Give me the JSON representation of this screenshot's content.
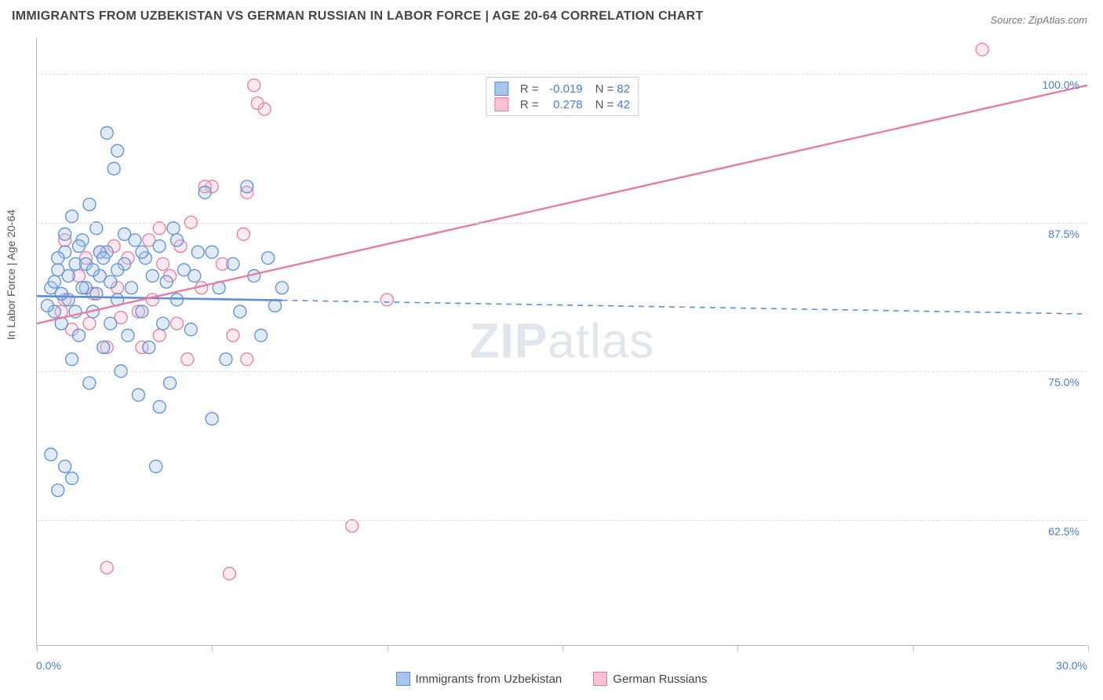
{
  "title": "IMMIGRANTS FROM UZBEKISTAN VS GERMAN RUSSIAN IN LABOR FORCE | AGE 20-64 CORRELATION CHART",
  "source": "Source: ZipAtlas.com",
  "watermark_bold": "ZIP",
  "watermark_rest": "atlas",
  "chart": {
    "type": "scatter",
    "y_label": "In Labor Force | Age 20-64",
    "x_min": 0.0,
    "x_max": 30.0,
    "y_min": 52.0,
    "y_max": 103.0,
    "x_ticks": [
      0,
      5,
      10,
      15,
      20,
      25,
      30
    ],
    "x_tick_labels": {
      "0": "0.0%",
      "30": "30.0%"
    },
    "y_ticks": [
      62.5,
      75.0,
      87.5,
      100.0
    ],
    "y_tick_labels": [
      "62.5%",
      "75.0%",
      "87.5%",
      "100.0%"
    ],
    "grid_color": "#dddddd",
    "axis_color": "#bbbbbb",
    "background_color": "#ffffff",
    "marker_radius": 8,
    "marker_stroke_width": 1.3,
    "marker_fill_opacity": 0.35,
    "series": [
      {
        "key": "uzbekistan",
        "label": "Immigrants from Uzbekistan",
        "color_stroke": "#5b8fd6",
        "color_fill": "#a8c5eb",
        "r_value": "-0.019",
        "n_value": "82",
        "trend": {
          "x1": 0.0,
          "y1": 81.3,
          "x2": 30.0,
          "y2": 79.8,
          "solid_until_x": 7.0,
          "solid_width": 2.6,
          "dash_width": 1.6,
          "dash_pattern": "7,6"
        },
        "points": [
          [
            0.4,
            82.0
          ],
          [
            0.5,
            80.0
          ],
          [
            0.6,
            83.5
          ],
          [
            0.7,
            79.0
          ],
          [
            0.8,
            85.0
          ],
          [
            0.9,
            81.0
          ],
          [
            1.0,
            88.0
          ],
          [
            1.0,
            76.0
          ],
          [
            1.1,
            84.0
          ],
          [
            1.2,
            78.0
          ],
          [
            1.3,
            86.0
          ],
          [
            1.4,
            82.0
          ],
          [
            1.5,
            74.0
          ],
          [
            1.6,
            80.0
          ],
          [
            1.7,
            87.0
          ],
          [
            1.8,
            83.0
          ],
          [
            1.9,
            77.0
          ],
          [
            2.0,
            85.0
          ],
          [
            2.1,
            79.0
          ],
          [
            2.2,
            92.0
          ],
          [
            2.3,
            81.0
          ],
          [
            2.4,
            75.0
          ],
          [
            2.5,
            84.0
          ],
          [
            2.6,
            78.0
          ],
          [
            2.7,
            82.0
          ],
          [
            2.8,
            86.0
          ],
          [
            2.9,
            73.0
          ],
          [
            3.0,
            80.0
          ],
          [
            3.1,
            84.5
          ],
          [
            3.2,
            77.0
          ],
          [
            3.3,
            83.0
          ],
          [
            3.4,
            67.0
          ],
          [
            3.5,
            85.5
          ],
          [
            3.6,
            79.0
          ],
          [
            3.7,
            82.5
          ],
          [
            3.8,
            74.0
          ],
          [
            3.9,
            87.0
          ],
          [
            4.0,
            81.0
          ],
          [
            4.2,
            83.5
          ],
          [
            4.4,
            78.5
          ],
          [
            4.6,
            85.0
          ],
          [
            4.8,
            90.0
          ],
          [
            5.0,
            71.0
          ],
          [
            5.2,
            82.0
          ],
          [
            5.4,
            76.0
          ],
          [
            5.6,
            84.0
          ],
          [
            5.8,
            80.0
          ],
          [
            6.0,
            90.5
          ],
          [
            1.0,
            66.0
          ],
          [
            0.8,
            67.0
          ],
          [
            0.6,
            65.0
          ],
          [
            0.4,
            68.0
          ],
          [
            6.2,
            83.0
          ],
          [
            6.4,
            78.0
          ],
          [
            6.6,
            84.5
          ],
          [
            6.8,
            80.5
          ],
          [
            7.0,
            82.0
          ],
          [
            2.0,
            95.0
          ],
          [
            2.3,
            93.5
          ],
          [
            1.5,
            89.0
          ],
          [
            0.8,
            86.5
          ],
          [
            1.2,
            85.5
          ],
          [
            0.6,
            84.5
          ],
          [
            1.8,
            85.0
          ],
          [
            2.5,
            86.5
          ],
          [
            3.0,
            85.0
          ],
          [
            0.3,
            80.5
          ],
          [
            0.5,
            82.5
          ],
          [
            0.7,
            81.5
          ],
          [
            0.9,
            83.0
          ],
          [
            1.1,
            80.0
          ],
          [
            1.3,
            82.0
          ],
          [
            1.4,
            84.0
          ],
          [
            1.6,
            83.5
          ],
          [
            1.7,
            81.5
          ],
          [
            1.9,
            84.5
          ],
          [
            2.1,
            82.5
          ],
          [
            2.3,
            83.5
          ],
          [
            4.0,
            86.0
          ],
          [
            4.5,
            83.0
          ],
          [
            5.0,
            85.0
          ],
          [
            3.5,
            72.0
          ]
        ]
      },
      {
        "key": "german_russian",
        "label": "German Russians",
        "color_stroke": "#e57da0",
        "color_fill": "#f6c3d4",
        "r_value": "0.278",
        "n_value": "42",
        "trend": {
          "x1": 0.0,
          "y1": 79.0,
          "x2": 30.0,
          "y2": 99.0,
          "solid_until_x": 30.0,
          "solid_width": 2.4,
          "dash_width": 0,
          "dash_pattern": ""
        },
        "points": [
          [
            0.8,
            81.0
          ],
          [
            1.2,
            83.0
          ],
          [
            1.5,
            79.0
          ],
          [
            1.8,
            85.0
          ],
          [
            2.0,
            77.0
          ],
          [
            2.3,
            82.0
          ],
          [
            2.6,
            84.5
          ],
          [
            2.9,
            80.0
          ],
          [
            3.2,
            86.0
          ],
          [
            3.5,
            78.0
          ],
          [
            3.8,
            83.0
          ],
          [
            4.1,
            85.5
          ],
          [
            4.4,
            87.5
          ],
          [
            4.7,
            82.0
          ],
          [
            5.0,
            90.5
          ],
          [
            5.3,
            84.0
          ],
          [
            5.6,
            78.0
          ],
          [
            5.9,
            86.5
          ],
          [
            6.2,
            99.0
          ],
          [
            6.5,
            97.0
          ],
          [
            10.0,
            81.0
          ],
          [
            9.0,
            62.0
          ],
          [
            5.5,
            58.0
          ],
          [
            2.0,
            58.5
          ],
          [
            0.8,
            86.0
          ],
          [
            1.4,
            84.5
          ],
          [
            2.2,
            85.5
          ],
          [
            3.0,
            77.0
          ],
          [
            3.6,
            84.0
          ],
          [
            4.3,
            76.0
          ],
          [
            0.7,
            80.0
          ],
          [
            1.0,
            78.5
          ],
          [
            1.6,
            81.5
          ],
          [
            2.4,
            79.5
          ],
          [
            3.3,
            81.0
          ],
          [
            4.0,
            79.0
          ],
          [
            4.8,
            90.5
          ],
          [
            6.0,
            90.0
          ],
          [
            6.3,
            97.5
          ],
          [
            27.0,
            102.0
          ],
          [
            6.0,
            76.0
          ],
          [
            3.5,
            87.0
          ]
        ]
      }
    ]
  },
  "legend_text": {
    "R": "R = ",
    "N": "N = "
  }
}
